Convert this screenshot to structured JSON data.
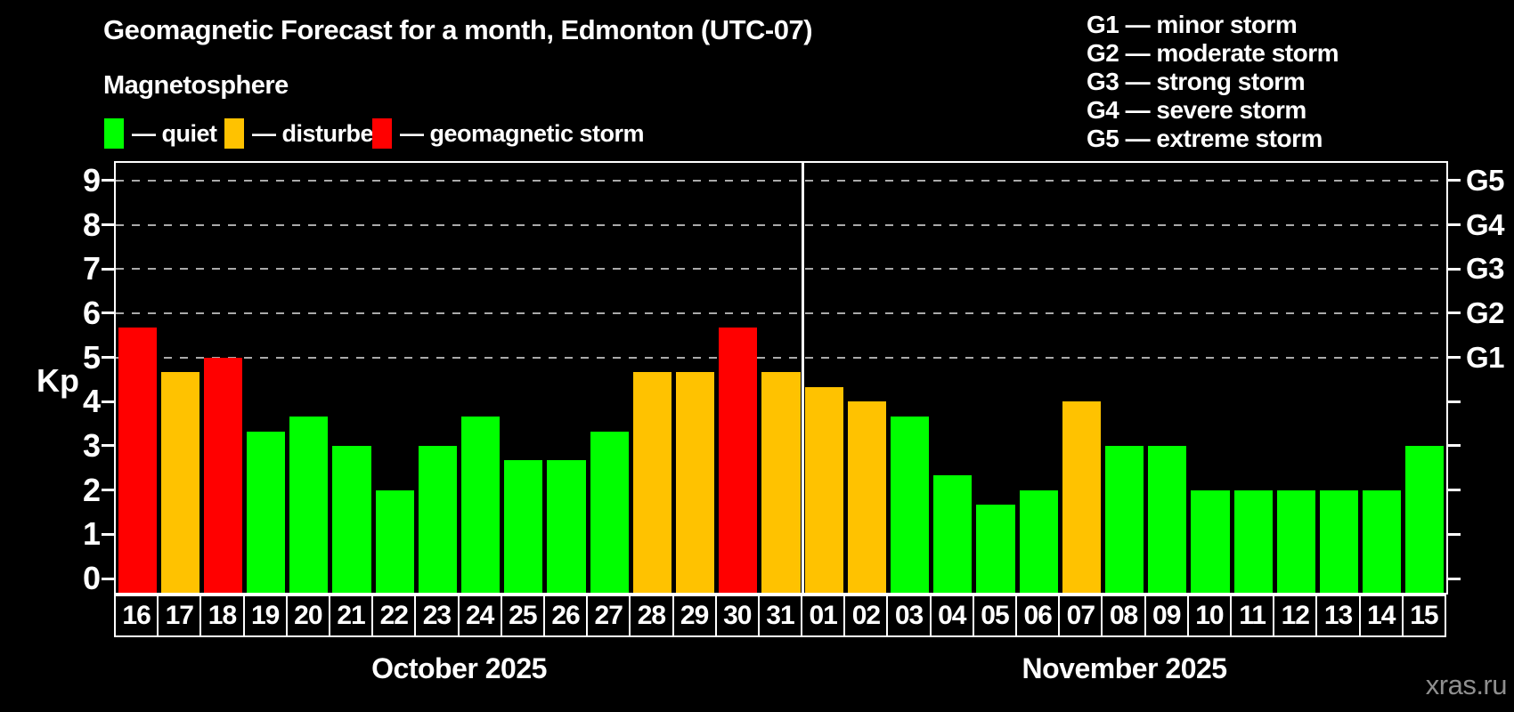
{
  "title": "Geomagnetic Forecast for a month, Edmonton (UTC-07)",
  "subtitle": "Magnetosphere",
  "legend": {
    "items": [
      {
        "name": "quiet",
        "label": "— quiet",
        "color": "#00ff00"
      },
      {
        "name": "disturbed",
        "label": "— disturbed",
        "color": "#ffc200"
      },
      {
        "name": "storm",
        "label": "— geomagnetic storm",
        "color": "#ff0000"
      }
    ]
  },
  "g_scale": [
    {
      "label": "G1",
      "text": "G1 — minor storm",
      "kp": 5
    },
    {
      "label": "G2",
      "text": "G2 — moderate storm",
      "kp": 6
    },
    {
      "label": "G3",
      "text": "G3 — strong storm",
      "kp": 7
    },
    {
      "label": "G4",
      "text": "G4 — severe storm",
      "kp": 8
    },
    {
      "label": "G5",
      "text": "G5 — extreme storm",
      "kp": 9
    }
  ],
  "axis": {
    "kp_label": "Kp",
    "kp_ticks": [
      0,
      1,
      2,
      3,
      4,
      5,
      6,
      7,
      8,
      9
    ]
  },
  "watermark": "xras.ru",
  "chart_data": {
    "type": "bar",
    "title": "Geomagnetic Forecast for a month, Edmonton (UTC-07)",
    "xlabel": "",
    "ylabel": "Kp",
    "ylim": [
      0,
      9.4
    ],
    "grid_kp": [
      5,
      6,
      7,
      8,
      9
    ],
    "grid_on": true,
    "status_colors": {
      "quiet": "#00ff00",
      "disturbed": "#ffc200",
      "storm": "#ff0000"
    },
    "months": [
      {
        "label": "October 2025",
        "days": [
          "16",
          "17",
          "18",
          "19",
          "20",
          "21",
          "22",
          "23",
          "24",
          "25",
          "26",
          "27",
          "28",
          "29",
          "30",
          "31"
        ],
        "values": [
          5.67,
          4.67,
          5.0,
          3.33,
          3.67,
          3.0,
          2.0,
          3.0,
          3.67,
          2.67,
          2.67,
          3.33,
          4.67,
          4.67,
          5.67,
          4.67
        ],
        "statuses": [
          "storm",
          "disturbed",
          "storm",
          "quiet",
          "quiet",
          "quiet",
          "quiet",
          "quiet",
          "quiet",
          "quiet",
          "quiet",
          "quiet",
          "disturbed",
          "disturbed",
          "storm",
          "disturbed"
        ]
      },
      {
        "label": "November 2025",
        "days": [
          "01",
          "02",
          "03",
          "04",
          "05",
          "06",
          "07",
          "08",
          "09",
          "10",
          "11",
          "12",
          "13",
          "14",
          "15"
        ],
        "values": [
          4.33,
          4.0,
          3.67,
          2.33,
          1.67,
          2.0,
          4.0,
          3.0,
          3.0,
          2.0,
          2.0,
          2.0,
          2.0,
          2.0,
          3.0
        ],
        "statuses": [
          "disturbed",
          "disturbed",
          "quiet",
          "quiet",
          "quiet",
          "quiet",
          "disturbed",
          "quiet",
          "quiet",
          "quiet",
          "quiet",
          "quiet",
          "quiet",
          "quiet",
          "quiet"
        ]
      }
    ]
  }
}
